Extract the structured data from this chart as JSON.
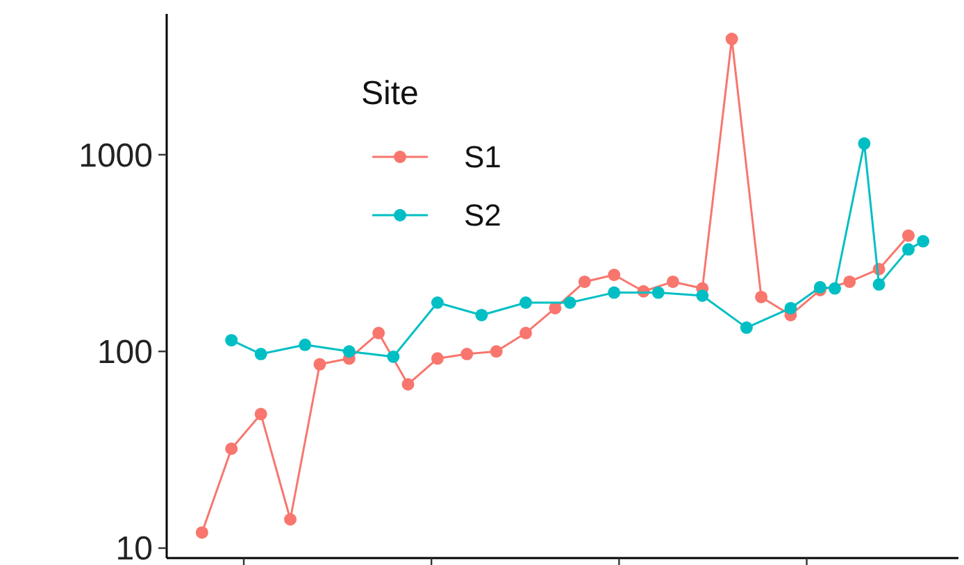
{
  "chart_data": {
    "type": "line",
    "legend_title": "Site",
    "log": true,
    "marker": "circle",
    "line_style": "solid",
    "grid": false,
    "legend": "top left",
    "tick_labels": "y",
    "categories": [
      null,
      null,
      null,
      null,
      null,
      null,
      null,
      null,
      null,
      null,
      null,
      null,
      null,
      null,
      null,
      null,
      null,
      null,
      null,
      null,
      null,
      null,
      null,
      null,
      null,
      null,
      null,
      null,
      null,
      null,
      null,
      null,
      null,
      null,
      null,
      null,
      null,
      null,
      null,
      null,
      null,
      null,
      null,
      null,
      null,
      null,
      null,
      null,
      null,
      null
    ],
    "ylim": [
      8.9,
      5200
    ],
    "yticks": [
      10,
      100,
      1000
    ],
    "series": [
      {
        "name": "S1",
        "color": "#f8766d",
        "values": [
          12,
          null,
          32,
          null,
          48,
          null,
          14,
          null,
          86,
          null,
          92,
          null,
          124,
          null,
          68,
          null,
          92,
          null,
          97,
          null,
          100,
          null,
          124,
          null,
          166,
          null,
          226,
          null,
          245,
          null,
          202,
          null,
          226,
          null,
          209,
          null,
          3880,
          null,
          189,
          null,
          153,
          null,
          205,
          null,
          226,
          null,
          262,
          null,
          388,
          null
        ]
      },
      {
        "name": "S2",
        "color": "#00bfc4",
        "values": [
          null,
          null,
          114,
          null,
          97,
          null,
          null,
          108,
          null,
          null,
          100,
          null,
          null,
          94,
          null,
          null,
          177,
          null,
          null,
          153,
          null,
          null,
          177,
          null,
          null,
          177,
          null,
          null,
          199,
          null,
          null,
          199,
          null,
          null,
          192,
          null,
          null,
          132,
          null,
          null,
          166,
          null,
          212,
          209,
          null,
          1140,
          219,
          null,
          330,
          363
        ]
      }
    ]
  }
}
